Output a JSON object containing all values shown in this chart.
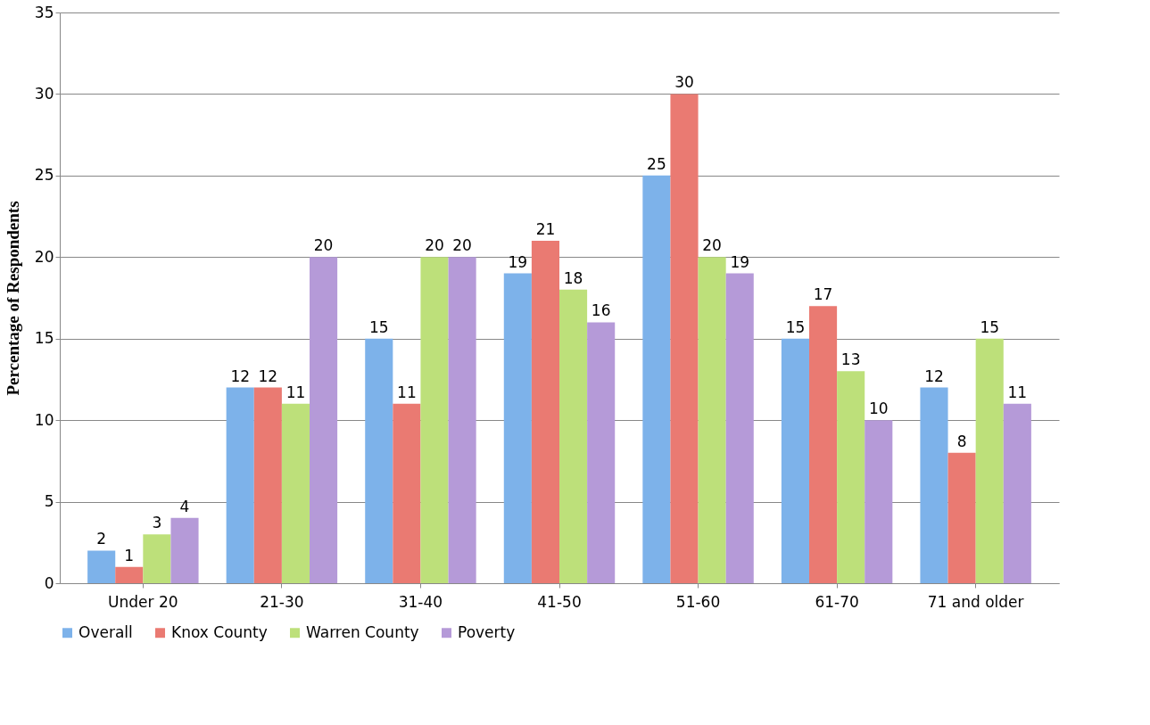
{
  "chart_data": {
    "type": "bar",
    "ylabel": "Percentage of Respondents",
    "categories": [
      "Under 20",
      "21-30",
      "31-40",
      "41-50",
      "51-60",
      "61-70",
      "71 and older"
    ],
    "series": [
      {
        "name": "Overall",
        "color": "#7db2ea",
        "values": [
          2,
          12,
          15,
          19,
          25,
          15,
          12
        ]
      },
      {
        "name": "Knox County",
        "color": "#ea7a72",
        "values": [
          1,
          12,
          11,
          21,
          30,
          17,
          8
        ]
      },
      {
        "name": "Warren County",
        "color": "#bde07a",
        "values": [
          3,
          11,
          20,
          18,
          20,
          13,
          15
        ]
      },
      {
        "name": "Poverty",
        "color": "#b59ad8",
        "values": [
          4,
          20,
          20,
          16,
          19,
          10,
          11
        ]
      }
    ],
    "ylim": [
      0,
      35
    ],
    "yticks": [
      0,
      5,
      10,
      15,
      20,
      25,
      30,
      35
    ],
    "grid": "y",
    "legend": "bottom",
    "data_labels": true
  }
}
